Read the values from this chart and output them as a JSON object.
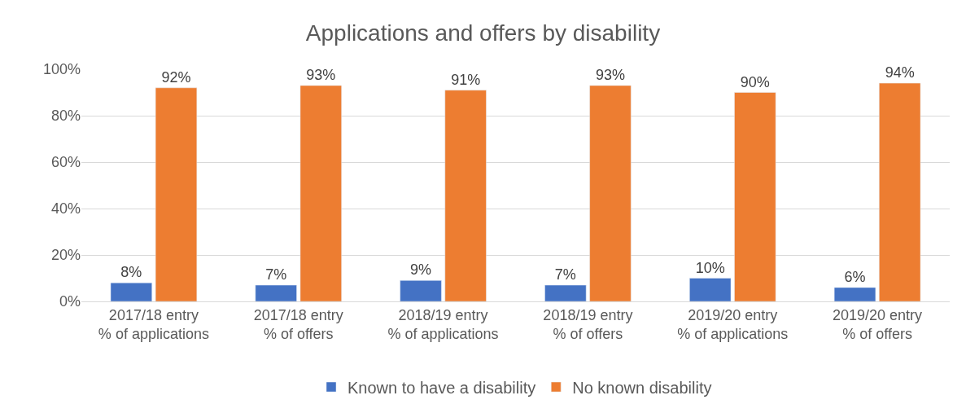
{
  "chart_data": {
    "type": "bar",
    "title": "Applications and offers by disability",
    "categories": [
      "2017/18 entry\n% of applications",
      "2017/18 entry\n% of offers",
      "2018/19 entry\n% of applications",
      "2018/19 entry\n% of offers",
      "2019/20 entry\n% of applications",
      "2019/20 entry\n% of offers"
    ],
    "series": [
      {
        "name": "Known to have a disability",
        "color": "#4472c4",
        "values": [
          8,
          7,
          9,
          7,
          10,
          6
        ],
        "value_labels": [
          "8%",
          "7%",
          "9%",
          "7%",
          "10%",
          "6%"
        ]
      },
      {
        "name": "No known disability",
        "color": "#ed7d31",
        "values": [
          92,
          93,
          91,
          93,
          90,
          94
        ],
        "value_labels": [
          "92%",
          "93%",
          "91%",
          "93%",
          "90%",
          "94%"
        ]
      }
    ],
    "ylim": [
      0,
      100
    ],
    "yticks": [
      {
        "value": 0,
        "label": "0%"
      },
      {
        "value": 20,
        "label": "20%"
      },
      {
        "value": 40,
        "label": "40%"
      },
      {
        "value": 60,
        "label": "60%"
      },
      {
        "value": 80,
        "label": "80%"
      },
      {
        "value": 100,
        "label": "100%"
      }
    ],
    "grid": "y",
    "legend": "bottom"
  }
}
